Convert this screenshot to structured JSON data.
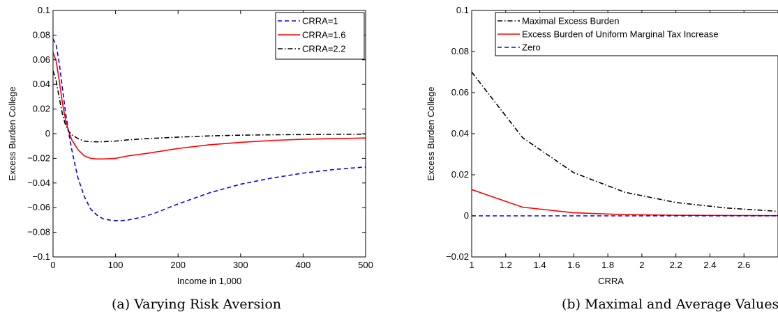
{
  "chart_data": [
    {
      "type": "line",
      "caption": "(a) Varying Risk Aversion",
      "xlabel": "Income in 1,000",
      "ylabel": "Excess Burden College",
      "xlim": [
        0,
        500
      ],
      "ylim": [
        -0.1,
        0.1
      ],
      "xticks": [
        0,
        100,
        200,
        300,
        400,
        500
      ],
      "yticks": [
        -0.1,
        -0.08,
        -0.06,
        -0.04,
        -0.02,
        0,
        0.02,
        0.04,
        0.06,
        0.08,
        0.1
      ],
      "xtick_labels": [
        "0",
        "100",
        "200",
        "300",
        "400",
        "500"
      ],
      "ytick_labels": [
        "−0.1",
        "−0.08",
        "−0.06",
        "−0.04",
        "−0.02",
        "0",
        "0.02",
        "0.04",
        "0.06",
        "0.08",
        "0.1"
      ],
      "grid": false,
      "legend": "top-right",
      "series": [
        {
          "name": "CRRA=1",
          "color": "#0000ff",
          "style": "dashed",
          "x": [
            0,
            5,
            10,
            15,
            20,
            25,
            30,
            35,
            40,
            50,
            60,
            70,
            80,
            90,
            100,
            110,
            120,
            130,
            140,
            160,
            180,
            200,
            250,
            300,
            350,
            400,
            450,
            500
          ],
          "y": [
            0.077,
            0.072,
            0.057,
            0.037,
            0.017,
            0.001,
            -0.013,
            -0.025,
            -0.036,
            -0.051,
            -0.061,
            -0.066,
            -0.069,
            -0.07,
            -0.0705,
            -0.0705,
            -0.07,
            -0.069,
            -0.068,
            -0.065,
            -0.061,
            -0.057,
            -0.048,
            -0.041,
            -0.036,
            -0.032,
            -0.029,
            -0.027
          ]
        },
        {
          "name": "CRRA=1.6",
          "color": "#ff0000",
          "style": "solid",
          "x": [
            0,
            5,
            10,
            15,
            20,
            25,
            30,
            40,
            50,
            60,
            70,
            80,
            90,
            100,
            120,
            150,
            200,
            250,
            300,
            350,
            400,
            450,
            500
          ],
          "y": [
            0.066,
            0.059,
            0.043,
            0.025,
            0.011,
            0.002,
            -0.005,
            -0.013,
            -0.018,
            -0.02,
            -0.0205,
            -0.0205,
            -0.0203,
            -0.02,
            -0.018,
            -0.016,
            -0.012,
            -0.009,
            -0.007,
            -0.0055,
            -0.0045,
            -0.004,
            -0.0035
          ]
        },
        {
          "name": "CRRA=2.2",
          "color": "#000000",
          "style": "dashdot",
          "x": [
            0,
            5,
            10,
            15,
            20,
            25,
            30,
            40,
            50,
            60,
            70,
            80,
            100,
            120,
            150,
            200,
            250,
            300,
            350,
            400,
            450,
            500
          ],
          "y": [
            0.051,
            0.043,
            0.029,
            0.016,
            0.007,
            0.002,
            -0.001,
            -0.004,
            -0.006,
            -0.0065,
            -0.0066,
            -0.0065,
            -0.006,
            -0.005,
            -0.004,
            -0.0028,
            -0.0018,
            -0.0012,
            -0.0009,
            -0.0007,
            -0.0005,
            -0.0004
          ]
        }
      ]
    },
    {
      "type": "line",
      "caption": "(b) Maximal and Average Values",
      "xlabel": "CRRA",
      "ylabel": "Excess Burden College",
      "xlim": [
        1,
        2.8
      ],
      "ylim": [
        -0.02,
        0.1
      ],
      "xticks": [
        1,
        1.2,
        1.4,
        1.6,
        1.8,
        2,
        2.2,
        2.4,
        2.6
      ],
      "yticks": [
        -0.02,
        0,
        0.02,
        0.04,
        0.06,
        0.08,
        0.1
      ],
      "xtick_labels": [
        "1",
        "1.2",
        "1.4",
        "1.6",
        "1.8",
        "2",
        "2.2",
        "2.4",
        "2.6"
      ],
      "ytick_labels": [
        "−0.02",
        "0",
        "0.02",
        "0.04",
        "0.06",
        "0.08",
        "0.1"
      ],
      "grid": false,
      "legend": "top-right",
      "series": [
        {
          "name": "Maximal Excess Burden",
          "color": "#000000",
          "style": "dashdot",
          "x": [
            1,
            1.3,
            1.6,
            1.9,
            2.2,
            2.5,
            2.8
          ],
          "y": [
            0.07,
            0.038,
            0.021,
            0.0115,
            0.0065,
            0.0038,
            0.0022
          ]
        },
        {
          "name": "Excess Burden of Uniform Marginal Tax Increase",
          "color": "#ff0000",
          "style": "solid",
          "x": [
            1,
            1.3,
            1.6,
            1.9,
            2.2,
            2.5,
            2.8
          ],
          "y": [
            0.0128,
            0.0042,
            0.0015,
            0.0006,
            0.0003,
            0.0002,
            0.0001
          ]
        },
        {
          "name": "Zero",
          "color": "#0000ff",
          "style": "dashed",
          "x": [
            1,
            2.8
          ],
          "y": [
            0,
            0
          ]
        }
      ]
    }
  ]
}
